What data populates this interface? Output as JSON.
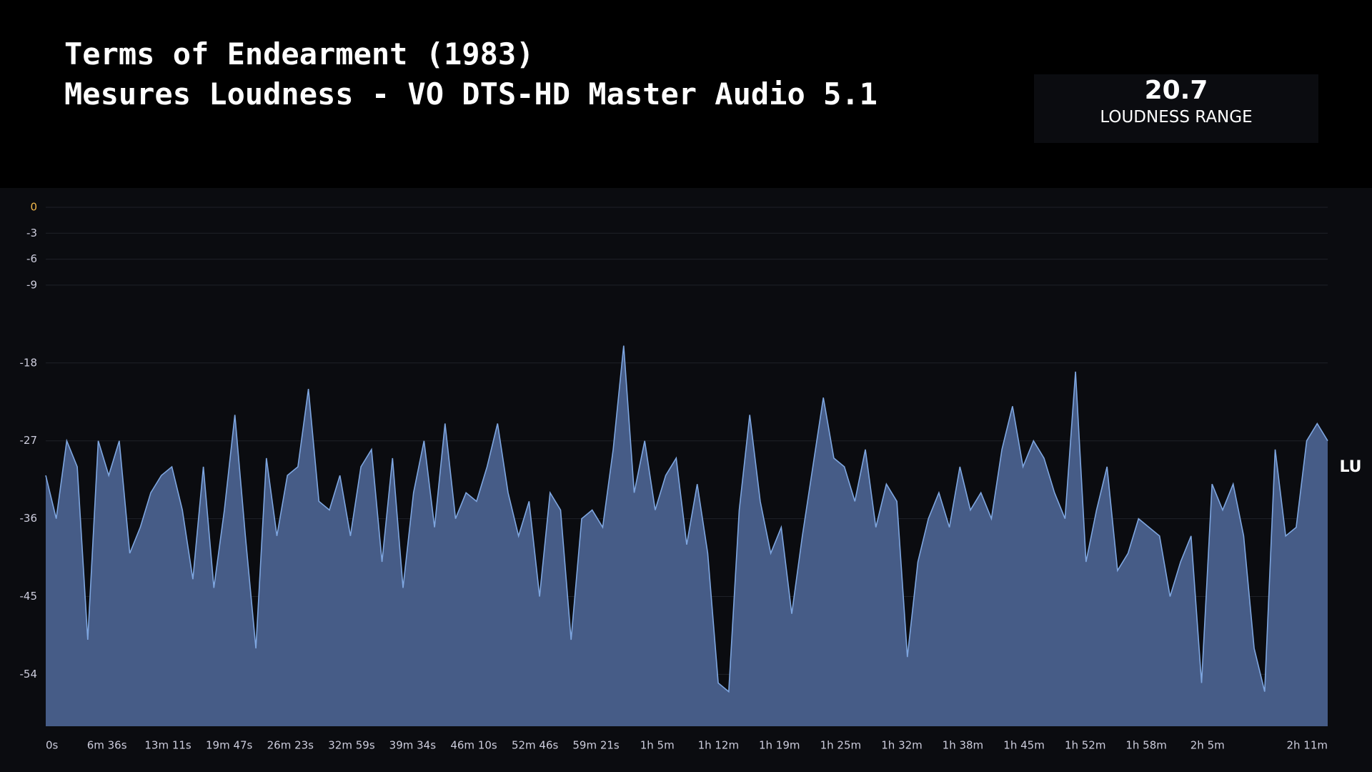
{
  "chart_data": {
    "type": "area",
    "title": "Terms of Endearment (1983)",
    "subtitle": "Mesures Loudness - VO DTS-HD Master Audio 5.1",
    "stat": {
      "value": 20.7,
      "label": "LOUDNESS RANGE"
    },
    "y_label": "LU",
    "color": "#7ea6e0",
    "fill": "#465c87",
    "grid": true,
    "xlim": [
      0,
      8296
    ],
    "ylim": [
      -60,
      0
    ],
    "yticks": [
      -54,
      -45,
      -36,
      -27,
      -18,
      -9,
      -6,
      -3,
      0
    ],
    "xticks": [
      {
        "value": 0,
        "label": "0s"
      },
      {
        "value": 396,
        "label": "6m 36s"
      },
      {
        "value": 791,
        "label": "13m 11s"
      },
      {
        "value": 1187,
        "label": "19m 47s"
      },
      {
        "value": 1583,
        "label": "26m 23s"
      },
      {
        "value": 1979,
        "label": "32m 59s"
      },
      {
        "value": 2374,
        "label": "39m 34s"
      },
      {
        "value": 2770,
        "label": "46m 10s"
      },
      {
        "value": 3166,
        "label": "52m 46s"
      },
      {
        "value": 3561,
        "label": "59m 21s"
      },
      {
        "value": 3957,
        "label": "1h 5m"
      },
      {
        "value": 4353,
        "label": "1h 12m"
      },
      {
        "value": 4748,
        "label": "1h 19m"
      },
      {
        "value": 5144,
        "label": "1h 25m"
      },
      {
        "value": 5540,
        "label": "1h 32m"
      },
      {
        "value": 5935,
        "label": "1h 38m"
      },
      {
        "value": 6331,
        "label": "1h 45m"
      },
      {
        "value": 6727,
        "label": "1h 52m"
      },
      {
        "value": 7122,
        "label": "1h 58m"
      },
      {
        "value": 7518,
        "label": "2h 5m"
      },
      {
        "value": 7914,
        "label": "2h 11m"
      }
    ],
    "x": [
      0,
      68,
      136,
      204,
      272,
      340,
      408,
      476,
      544,
      612,
      680,
      748,
      816,
      884,
      952,
      1020,
      1088,
      1156,
      1224,
      1292,
      1360,
      1428,
      1496,
      1564,
      1632,
      1700,
      1768,
      1836,
      1904,
      1972,
      2040,
      2108,
      2176,
      2244,
      2312,
      2380,
      2448,
      2516,
      2584,
      2652,
      2720,
      2788,
      2856,
      2924,
      2992,
      3060,
      3128,
      3196,
      3264,
      3332,
      3400,
      3468,
      3536,
      3604,
      3672,
      3740,
      3808,
      3876,
      3944,
      4012,
      4080,
      4148,
      4216,
      4284,
      4352,
      4420,
      4488,
      4556,
      4624,
      4692,
      4760,
      4828,
      4896,
      4964,
      5032,
      5100,
      5168,
      5236,
      5304,
      5372,
      5440,
      5508,
      5576,
      5644,
      5712,
      5780,
      5848,
      5916,
      5984,
      6052,
      6120,
      6188,
      6256,
      6324,
      6392,
      6460,
      6528,
      6596,
      6664,
      6732,
      6800,
      6868,
      6936,
      7004,
      7072,
      7140,
      7208,
      7276,
      7344,
      7412,
      7480,
      7548,
      7616,
      7684,
      7752,
      7820,
      7888,
      7956,
      8024,
      8092,
      8160,
      8228,
      8296
    ],
    "values": [
      -31,
      -36,
      -27,
      -30,
      -50,
      -27,
      -31,
      -27,
      -40,
      -37,
      -33,
      -31,
      -30,
      -35,
      -43,
      -30,
      -44,
      -35,
      -24,
      -38,
      -51,
      -29,
      -38,
      -31,
      -30,
      -21,
      -34,
      -35,
      -31,
      -38,
      -30,
      -28,
      -41,
      -29,
      -44,
      -33,
      -27,
      -37,
      -25,
      -36,
      -33,
      -34,
      -30,
      -25,
      -33,
      -38,
      -34,
      -45,
      -33,
      -35,
      -50,
      -36,
      -35,
      -37,
      -28,
      -16,
      -33,
      -27,
      -35,
      -31,
      -29,
      -39,
      -32,
      -40,
      -55,
      -56,
      -35,
      -24,
      -34,
      -40,
      -37,
      -47,
      -38,
      -30,
      -22,
      -29,
      -30,
      -34,
      -28,
      -37,
      -32,
      -34,
      -52,
      -41,
      -36,
      -33,
      -37,
      -30,
      -35,
      -33,
      -36,
      -28,
      -23,
      -30,
      -27,
      -29,
      -33,
      -36,
      -19,
      -41,
      -35,
      -30,
      -42,
      -40,
      -36,
      -37,
      -38,
      -45,
      -41,
      -38,
      -55,
      -32,
      -35,
      -32,
      -38,
      -51,
      -56,
      -28,
      -38,
      -37,
      -27,
      -25,
      -27
    ]
  }
}
